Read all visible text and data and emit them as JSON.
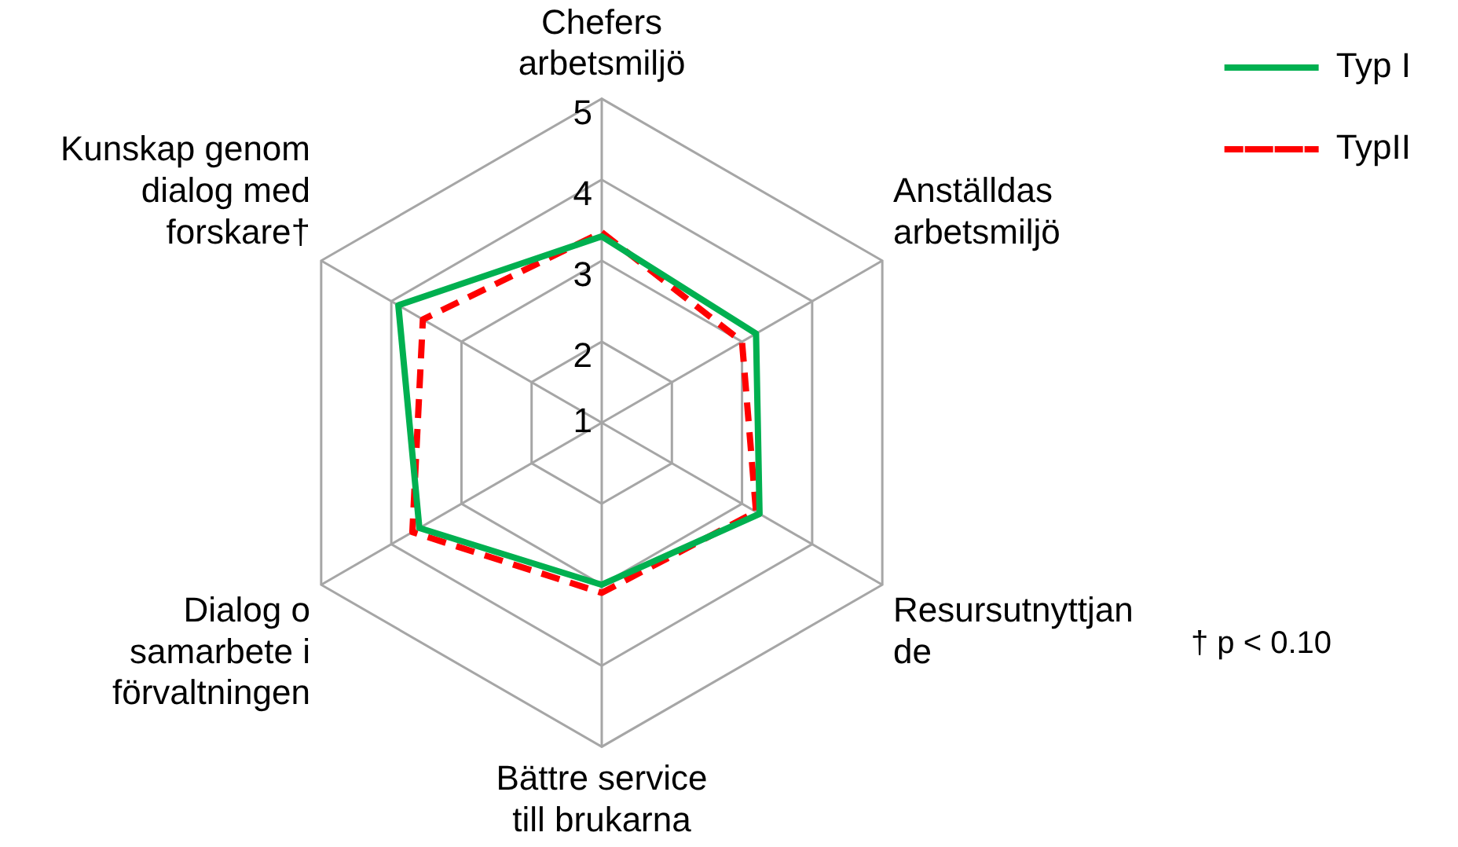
{
  "chart_data": {
    "type": "radar",
    "categories": [
      "Chefers\narbetsmiljö",
      "Anställdas\narbetsmiljö",
      "Resursutnyttjan\nde",
      "Bättre service\ntill brukarna",
      "Dialog o\nsamarbete i\nförvaltningen",
      "Kunskap genom\ndialog med\nforskare†"
    ],
    "series": [
      {
        "name": "Typ I",
        "color": "#00b050",
        "line_style": "solid",
        "values": [
          3.3,
          3.2,
          3.25,
          3.0,
          3.6,
          3.9
        ]
      },
      {
        "name": "TypII",
        "color": "#ff0000",
        "line_style": "dashed",
        "values": [
          3.35,
          3.0,
          3.2,
          3.1,
          3.7,
          3.55
        ]
      }
    ],
    "ylim": [
      1,
      5
    ],
    "yticks": [
      1,
      2,
      3,
      4,
      5
    ],
    "grid": true,
    "legend": "right",
    "marker": "none",
    "annotations": [
      "† p < 0.10"
    ]
  }
}
